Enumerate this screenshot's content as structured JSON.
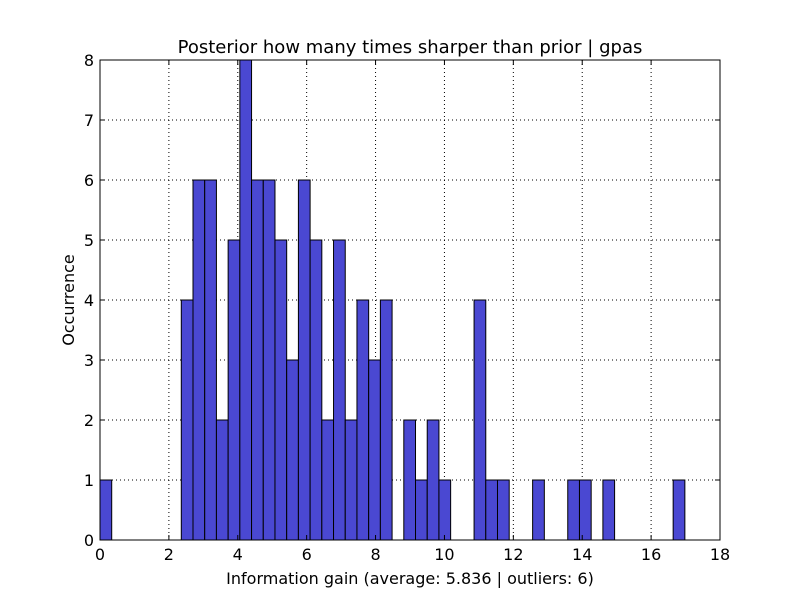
{
  "chart_data": {
    "type": "bar",
    "title": "Posterior how many times sharper than prior | gpas",
    "xlabel": "Information gain (average: 5.836 | outliers: 6)",
    "ylabel": "Occurrence",
    "xlim": [
      0,
      18
    ],
    "ylim": [
      0,
      8
    ],
    "grid": true,
    "bin_width": 0.34,
    "x_ticks": [
      "0",
      "2",
      "4",
      "6",
      "8",
      "10",
      "12",
      "14",
      "16",
      "18"
    ],
    "y_ticks": [
      "0",
      "1",
      "2",
      "3",
      "4",
      "5",
      "6",
      "7",
      "8"
    ],
    "bars": [
      {
        "x": 0.0,
        "value": 1
      },
      {
        "x": 2.36,
        "value": 4
      },
      {
        "x": 2.7,
        "value": 6
      },
      {
        "x": 3.04,
        "value": 6
      },
      {
        "x": 3.38,
        "value": 2
      },
      {
        "x": 3.72,
        "value": 5
      },
      {
        "x": 4.06,
        "value": 8
      },
      {
        "x": 4.4,
        "value": 6
      },
      {
        "x": 4.74,
        "value": 6
      },
      {
        "x": 5.08,
        "value": 5
      },
      {
        "x": 5.42,
        "value": 3
      },
      {
        "x": 5.76,
        "value": 6
      },
      {
        "x": 6.1,
        "value": 5
      },
      {
        "x": 6.44,
        "value": 2
      },
      {
        "x": 6.78,
        "value": 5
      },
      {
        "x": 7.12,
        "value": 2
      },
      {
        "x": 7.46,
        "value": 4
      },
      {
        "x": 7.8,
        "value": 3
      },
      {
        "x": 8.14,
        "value": 4
      },
      {
        "x": 8.82,
        "value": 2
      },
      {
        "x": 9.16,
        "value": 1
      },
      {
        "x": 9.5,
        "value": 2
      },
      {
        "x": 9.84,
        "value": 1
      },
      {
        "x": 10.86,
        "value": 4
      },
      {
        "x": 11.2,
        "value": 1
      },
      {
        "x": 11.54,
        "value": 1
      },
      {
        "x": 12.56,
        "value": 1
      },
      {
        "x": 13.58,
        "value": 1
      },
      {
        "x": 13.92,
        "value": 1
      },
      {
        "x": 14.6,
        "value": 1
      },
      {
        "x": 16.64,
        "value": 1
      }
    ]
  }
}
